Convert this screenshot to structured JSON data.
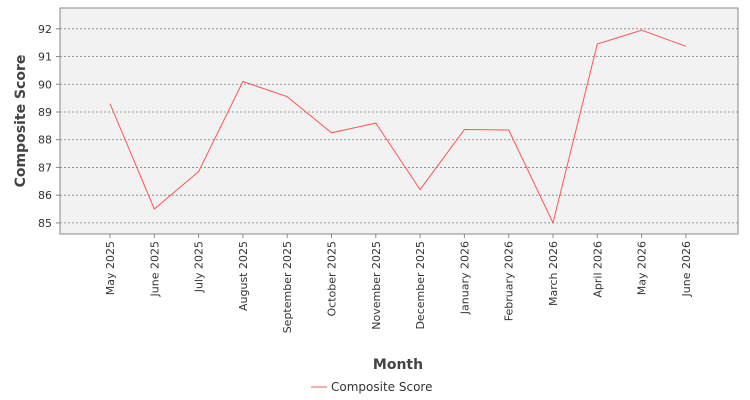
{
  "chart_data": {
    "type": "line",
    "title": "",
    "xlabel": "Month",
    "ylabel": "Composite Score",
    "categories": [
      "May 2025",
      "June 2025",
      "July 2025",
      "August 2025",
      "September 2025",
      "October 2025",
      "November 2025",
      "December 2025",
      "January 2026",
      "February 2026",
      "March 2026",
      "April 2026",
      "May 2026",
      "June 2026"
    ],
    "series": [
      {
        "name": "Composite Score",
        "values": [
          89.3,
          85.5,
          86.85,
          90.1,
          89.55,
          88.25,
          88.6,
          86.2,
          88.37,
          88.35,
          85.0,
          91.45,
          91.95,
          91.37
        ],
        "color": "#ff5555"
      }
    ],
    "ylim": [
      84.6,
      92.75
    ],
    "yticks": [
      85,
      86,
      87,
      88,
      89,
      90,
      91,
      92
    ],
    "grid": true,
    "legend_position": "bottom-center",
    "colors": {
      "plot_background": "#f2f2f2",
      "gridline": "#808080",
      "axis": "#888888"
    }
  }
}
